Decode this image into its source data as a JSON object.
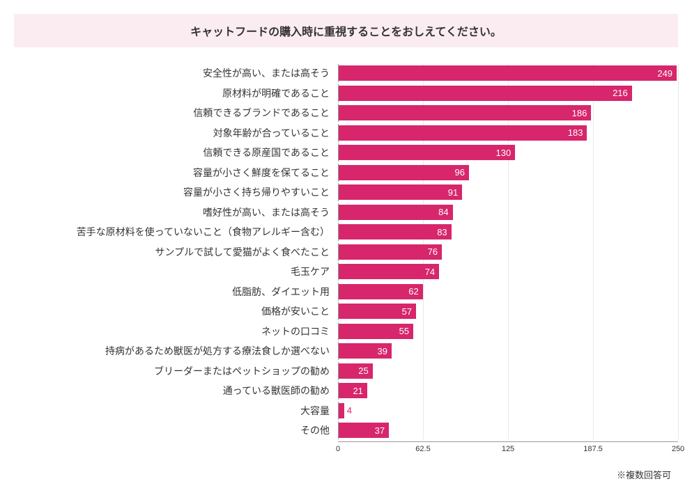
{
  "chart": {
    "type": "bar",
    "title": "キャットフードの購入時に重視することをおしえてください。",
    "title_bg": "#fbecf1",
    "title_color": "#333333",
    "title_fontsize": 16,
    "bar_color": "#d7266b",
    "value_label_color": "#ffffff",
    "background_color": "#ffffff",
    "grid_color": "#e8e8e8",
    "axis_color": "#999999",
    "label_fontsize": 14,
    "value_fontsize": 13,
    "xlim": [
      0,
      250
    ],
    "xticks": [
      0,
      62.5,
      125,
      187.5,
      250
    ],
    "xtick_labels": [
      "0",
      "62.5",
      "125",
      "187.5",
      "250"
    ],
    "footnote": "※複数回答可",
    "items": [
      {
        "label": "安全性が高い、または高そう",
        "value": 249
      },
      {
        "label": "原材料が明確であること",
        "value": 216
      },
      {
        "label": "信頼できるブランドであること",
        "value": 186
      },
      {
        "label": "対象年齢が合っていること",
        "value": 183
      },
      {
        "label": "信頼できる原産国であること",
        "value": 130
      },
      {
        "label": "容量が小さく鮮度を保てること",
        "value": 96
      },
      {
        "label": "容量が小さく持ち帰りやすいこと",
        "value": 91
      },
      {
        "label": "嗜好性が高い、または高そう",
        "value": 84
      },
      {
        "label": "苦手な原材料を使っていないこと（食物アレルギー含む）",
        "value": 83
      },
      {
        "label": "サンプルで試して愛猫がよく食べたこと",
        "value": 76
      },
      {
        "label": "毛玉ケア",
        "value": 74
      },
      {
        "label": "低脂肪、ダイエット用",
        "value": 62
      },
      {
        "label": "価格が安いこと",
        "value": 57
      },
      {
        "label": "ネットの口コミ",
        "value": 55
      },
      {
        "label": "持病があるため獣医が処方する療法食しか選べない",
        "value": 39
      },
      {
        "label": "ブリーダーまたはペットショップの勧め",
        "value": 25
      },
      {
        "label": "通っている獣医師の勧め",
        "value": 21
      },
      {
        "label": "大容量",
        "value": 4
      },
      {
        "label": "その他",
        "value": 37
      }
    ]
  }
}
